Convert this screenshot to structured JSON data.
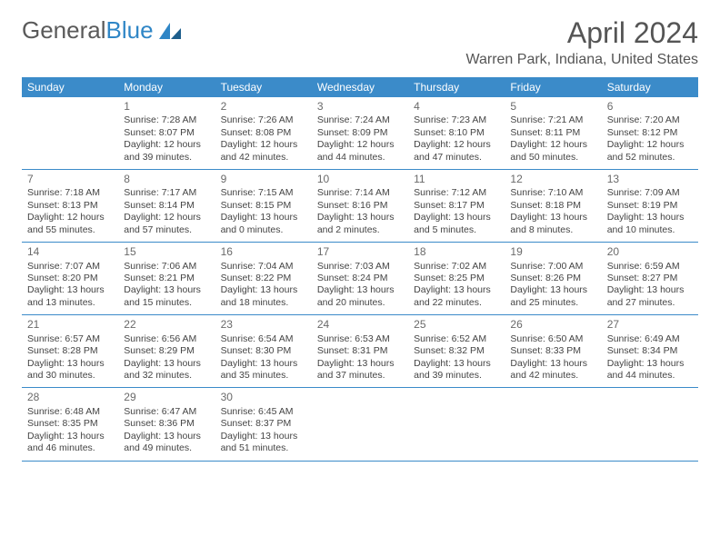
{
  "logo": {
    "word1": "General",
    "word2": "Blue"
  },
  "title": "April 2024",
  "subtitle": "Warren Park, Indiana, United States",
  "colors": {
    "header_bg": "#3b8bc9",
    "header_text": "#ffffff",
    "rule": "#3b8bc9",
    "text": "#444444",
    "title": "#555555",
    "logo_grey": "#5a5a5a",
    "logo_blue": "#2f86c6"
  },
  "day_headers": [
    "Sunday",
    "Monday",
    "Tuesday",
    "Wednesday",
    "Thursday",
    "Friday",
    "Saturday"
  ],
  "weeks": [
    [
      null,
      {
        "n": "1",
        "sr": "7:28 AM",
        "ss": "8:07 PM",
        "dl": "12 hours and 39 minutes."
      },
      {
        "n": "2",
        "sr": "7:26 AM",
        "ss": "8:08 PM",
        "dl": "12 hours and 42 minutes."
      },
      {
        "n": "3",
        "sr": "7:24 AM",
        "ss": "8:09 PM",
        "dl": "12 hours and 44 minutes."
      },
      {
        "n": "4",
        "sr": "7:23 AM",
        "ss": "8:10 PM",
        "dl": "12 hours and 47 minutes."
      },
      {
        "n": "5",
        "sr": "7:21 AM",
        "ss": "8:11 PM",
        "dl": "12 hours and 50 minutes."
      },
      {
        "n": "6",
        "sr": "7:20 AM",
        "ss": "8:12 PM",
        "dl": "12 hours and 52 minutes."
      }
    ],
    [
      {
        "n": "7",
        "sr": "7:18 AM",
        "ss": "8:13 PM",
        "dl": "12 hours and 55 minutes."
      },
      {
        "n": "8",
        "sr": "7:17 AM",
        "ss": "8:14 PM",
        "dl": "12 hours and 57 minutes."
      },
      {
        "n": "9",
        "sr": "7:15 AM",
        "ss": "8:15 PM",
        "dl": "13 hours and 0 minutes."
      },
      {
        "n": "10",
        "sr": "7:14 AM",
        "ss": "8:16 PM",
        "dl": "13 hours and 2 minutes."
      },
      {
        "n": "11",
        "sr": "7:12 AM",
        "ss": "8:17 PM",
        "dl": "13 hours and 5 minutes."
      },
      {
        "n": "12",
        "sr": "7:10 AM",
        "ss": "8:18 PM",
        "dl": "13 hours and 8 minutes."
      },
      {
        "n": "13",
        "sr": "7:09 AM",
        "ss": "8:19 PM",
        "dl": "13 hours and 10 minutes."
      }
    ],
    [
      {
        "n": "14",
        "sr": "7:07 AM",
        "ss": "8:20 PM",
        "dl": "13 hours and 13 minutes."
      },
      {
        "n": "15",
        "sr": "7:06 AM",
        "ss": "8:21 PM",
        "dl": "13 hours and 15 minutes."
      },
      {
        "n": "16",
        "sr": "7:04 AM",
        "ss": "8:22 PM",
        "dl": "13 hours and 18 minutes."
      },
      {
        "n": "17",
        "sr": "7:03 AM",
        "ss": "8:24 PM",
        "dl": "13 hours and 20 minutes."
      },
      {
        "n": "18",
        "sr": "7:02 AM",
        "ss": "8:25 PM",
        "dl": "13 hours and 22 minutes."
      },
      {
        "n": "19",
        "sr": "7:00 AM",
        "ss": "8:26 PM",
        "dl": "13 hours and 25 minutes."
      },
      {
        "n": "20",
        "sr": "6:59 AM",
        "ss": "8:27 PM",
        "dl": "13 hours and 27 minutes."
      }
    ],
    [
      {
        "n": "21",
        "sr": "6:57 AM",
        "ss": "8:28 PM",
        "dl": "13 hours and 30 minutes."
      },
      {
        "n": "22",
        "sr": "6:56 AM",
        "ss": "8:29 PM",
        "dl": "13 hours and 32 minutes."
      },
      {
        "n": "23",
        "sr": "6:54 AM",
        "ss": "8:30 PM",
        "dl": "13 hours and 35 minutes."
      },
      {
        "n": "24",
        "sr": "6:53 AM",
        "ss": "8:31 PM",
        "dl": "13 hours and 37 minutes."
      },
      {
        "n": "25",
        "sr": "6:52 AM",
        "ss": "8:32 PM",
        "dl": "13 hours and 39 minutes."
      },
      {
        "n": "26",
        "sr": "6:50 AM",
        "ss": "8:33 PM",
        "dl": "13 hours and 42 minutes."
      },
      {
        "n": "27",
        "sr": "6:49 AM",
        "ss": "8:34 PM",
        "dl": "13 hours and 44 minutes."
      }
    ],
    [
      {
        "n": "28",
        "sr": "6:48 AM",
        "ss": "8:35 PM",
        "dl": "13 hours and 46 minutes."
      },
      {
        "n": "29",
        "sr": "6:47 AM",
        "ss": "8:36 PM",
        "dl": "13 hours and 49 minutes."
      },
      {
        "n": "30",
        "sr": "6:45 AM",
        "ss": "8:37 PM",
        "dl": "13 hours and 51 minutes."
      },
      null,
      null,
      null,
      null
    ]
  ],
  "labels": {
    "sunrise": "Sunrise: ",
    "sunset": "Sunset: ",
    "daylight": "Daylight: "
  }
}
